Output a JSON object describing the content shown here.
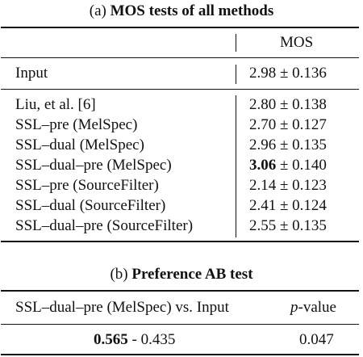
{
  "table_a": {
    "caption_prefix": "(a)",
    "caption_title": "MOS tests of all methods",
    "header": {
      "method": "",
      "mos": "MOS"
    },
    "input_row": {
      "label": "Input",
      "mos": "2.98 ± 0.136"
    },
    "rows": [
      {
        "label": "Liu, et al. [6]",
        "mos_main": "2.80",
        "mos_pm": "± 0.138"
      },
      {
        "label": "SSL–pre (MelSpec)",
        "mos_main": "2.70",
        "mos_pm": "± 0.127"
      },
      {
        "label": "SSL–dual (MelSpec)",
        "mos_main": "2.96",
        "mos_pm": "± 0.135"
      },
      {
        "label": "SSL–dual–pre (MelSpec)",
        "mos_main": "3.06",
        "mos_pm": "± 0.140"
      },
      {
        "label": "SSL–pre (SourceFilter)",
        "mos_main": "2.14",
        "mos_pm": "± 0.123"
      },
      {
        "label": "SSL–dual (SourceFilter)",
        "mos_main": "2.41",
        "mos_pm": "± 0.124"
      },
      {
        "label": "SSL–dual–pre (SourceFilter)",
        "mos_main": "2.55",
        "mos_pm": "± 0.135"
      }
    ]
  },
  "table_b": {
    "caption_prefix": "(b)",
    "caption_title": "Preference AB test",
    "header": {
      "comparison": "SSL–dual–pre (MelSpec) vs. Input",
      "pvalue_p": "p",
      "pvalue_rest": "-value"
    },
    "row": {
      "pref_a": "0.565",
      "pref_sep": " - ",
      "pref_b": "0.435",
      "pvalue": "0.047"
    }
  }
}
